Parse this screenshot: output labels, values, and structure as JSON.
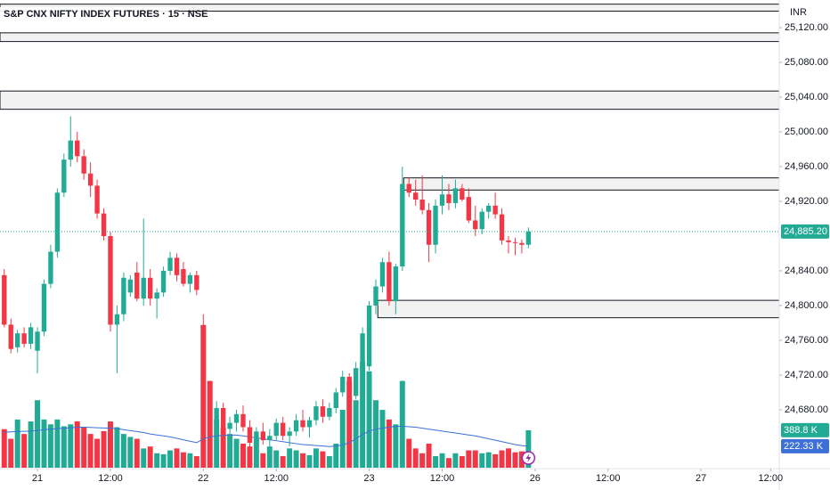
{
  "chart_data": {
    "type": "candlestick",
    "title": "S&P CNX NIFTY INDEX FUTURES · 15 · NSE",
    "currency": "INR",
    "color_up": "#22ab94",
    "color_down": "#f23645",
    "xlim": [
      -0.64,
      116.8
    ],
    "xticks": [
      {
        "value": 5,
        "label": "21"
      },
      {
        "value": 16,
        "label": "12:00"
      },
      {
        "value": 30,
        "label": "22"
      },
      {
        "value": 41,
        "label": "12:00"
      },
      {
        "value": 55,
        "label": "23"
      },
      {
        "value": 66,
        "label": "12:00"
      },
      {
        "value": 80,
        "label": "26"
      },
      {
        "value": 91,
        "label": "12:00"
      },
      {
        "value": 105,
        "label": "27"
      },
      {
        "value": 115.5,
        "label": "12:00"
      }
    ],
    "ylim": [
      24613.3,
      25151.8
    ],
    "yticks": [
      {
        "value": 25120,
        "label": "25,120.00"
      },
      {
        "value": 25080,
        "label": "25,080.00"
      },
      {
        "value": 25040,
        "label": "25,040.00"
      },
      {
        "value": 25000,
        "label": "25,000.00"
      },
      {
        "value": 24960,
        "label": "24,960.00"
      },
      {
        "value": 24920,
        "label": "24,920.00"
      },
      {
        "value": 24840,
        "label": "24,840.00"
      },
      {
        "value": 24800,
        "label": "24,800.00"
      },
      {
        "value": 24760,
        "label": "24,760.00"
      },
      {
        "value": 24720,
        "label": "24,720.00"
      },
      {
        "value": 24680,
        "label": "24,680.00"
      }
    ],
    "open": [
      24835,
      24778,
      24752,
      24768,
      24756,
      24748,
      24770,
      24825,
      24862,
      24930,
      24968,
      24990,
      24972,
      24952,
      24938,
      24906,
      24880,
      24778,
      24790,
      24815,
      24838,
      24808,
      24832,
      24808,
      24815,
      24840,
      24855,
      24842,
      24825,
      24835,
      24775,
      24688,
      24668,
      24682,
      24658,
      24665,
      24675,
      24660,
      24642,
      24655,
      24645,
      24650,
      24665,
      24650,
      24655,
      24668,
      24660,
      24668,
      24684,
      24672,
      24682,
      24700,
      24718,
      24696,
      24728,
      24730,
      24800,
      24822,
      24850,
      24805,
      24845,
      24940,
      24930,
      24922,
      24910,
      24870,
      24915,
      24928,
      24918,
      24935,
      24925,
      24898,
      24888,
      24908,
      24915,
      24905,
      24875,
      24873,
      24872,
      24870
    ],
    "high": [
      24842,
      24785,
      24772,
      24775,
      24780,
      24775,
      24830,
      24870,
      24935,
      24975,
      25018,
      25000,
      24980,
      24965,
      24945,
      24912,
      24885,
      24800,
      24838,
      24835,
      24850,
      24900,
      24842,
      24820,
      24845,
      24862,
      24860,
      24850,
      24838,
      24840,
      24790,
      24700,
      24690,
      24688,
      24672,
      24680,
      24685,
      24668,
      24660,
      24665,
      24658,
      24670,
      24672,
      24660,
      24675,
      24680,
      24672,
      24690,
      24692,
      24688,
      24705,
      24725,
      24722,
      24735,
      24775,
      24805,
      24830,
      24855,
      24862,
      24848,
      24960,
      24948,
      24945,
      24950,
      24918,
      24922,
      24950,
      24940,
      24945,
      24940,
      24935,
      24915,
      24912,
      24918,
      24930,
      24912,
      24880,
      24878,
      24876,
      24890
    ],
    "low": [
      24775,
      24745,
      24746,
      24752,
      24750,
      24722,
      24765,
      24820,
      24855,
      24925,
      24960,
      24965,
      24945,
      24925,
      24900,
      24875,
      24770,
      24722,
      24782,
      24810,
      24805,
      24800,
      24800,
      24785,
      24810,
      24835,
      24828,
      24822,
      24815,
      24812,
      24680,
      24660,
      24655,
      24650,
      24640,
      24655,
      24655,
      24635,
      24630,
      24640,
      24632,
      24645,
      24645,
      24638,
      24650,
      24655,
      24648,
      24662,
      24665,
      24668,
      24676,
      24695,
      24690,
      24692,
      24722,
      24725,
      24790,
      24815,
      24800,
      24790,
      24840,
      24925,
      24915,
      24905,
      24850,
      24860,
      24905,
      24910,
      24912,
      24920,
      24895,
      24880,
      24882,
      24900,
      24900,
      24870,
      24860,
      24858,
      24860,
      24866
    ],
    "close": [
      24778,
      24750,
      24768,
      24756,
      24775,
      24770,
      24825,
      24862,
      24930,
      24968,
      24990,
      24972,
      24952,
      24938,
      24906,
      24880,
      24778,
      24790,
      24832,
      24830,
      24808,
      24832,
      24808,
      24815,
      24840,
      24855,
      24835,
      24825,
      24835,
      24818,
      24688,
      24668,
      24682,
      24658,
      24665,
      24675,
      24660,
      24642,
      24655,
      24645,
      24650,
      24665,
      24650,
      24655,
      24668,
      24660,
      24668,
      24684,
      24672,
      24682,
      24700,
      24718,
      24696,
      24728,
      24768,
      24800,
      24822,
      24850,
      24805,
      24845,
      24940,
      24930,
      24922,
      24910,
      24870,
      24915,
      24928,
      24918,
      24935,
      24922,
      24898,
      24888,
      24908,
      24915,
      24905,
      24875,
      24873,
      24872,
      24870,
      24885.2
    ],
    "last_price": {
      "value": 24885.2,
      "label": "24,885.20"
    },
    "y2lim": [
      0,
      4850
    ],
    "volume": {
      "values": [
        400,
        300,
        500,
        350,
        480,
        700,
        500,
        450,
        500,
        430,
        450,
        480,
        420,
        350,
        300,
        380,
        480,
        420,
        350,
        320,
        300,
        200,
        220,
        150,
        140,
        180,
        200,
        160,
        150,
        120,
        1480,
        900,
        500,
        420,
        350,
        300,
        250,
        220,
        300,
        150,
        220,
        180,
        120,
        200,
        180,
        150,
        130,
        200,
        170,
        120,
        250,
        600,
        900,
        700,
        1100,
        1000,
        700,
        600,
        500,
        450,
        900,
        300,
        200,
        150,
        250,
        120,
        150,
        100,
        150,
        120,
        180,
        180,
        150,
        160,
        140,
        180,
        200,
        160,
        170,
        388.8
      ],
      "last_label": "388.8 K"
    },
    "volume_ma": {
      "color": "#3d6fd9",
      "values": [
        370,
        372,
        375,
        378,
        380,
        385,
        395,
        400,
        405,
        410,
        415,
        420,
        420,
        418,
        415,
        412,
        410,
        405,
        395,
        385,
        375,
        365,
        350,
        340,
        330,
        320,
        305,
        290,
        275,
        260,
        300,
        320,
        330,
        335,
        340,
        338,
        330,
        320,
        310,
        300,
        290,
        280,
        270,
        260,
        250,
        240,
        235,
        230,
        225,
        220,
        225,
        235,
        260,
        300,
        345,
        380,
        400,
        410,
        420,
        430,
        430,
        425,
        420,
        410,
        400,
        390,
        380,
        370,
        360,
        350,
        340,
        330,
        315,
        300,
        285,
        270,
        255,
        240,
        230,
        222.33
      ],
      "last_label": "222.33 K"
    },
    "zones": [
      {
        "low": 25139,
        "high": 25147,
        "start": -0.64
      },
      {
        "low": 25104,
        "high": 25114,
        "start": -0.64
      },
      {
        "low": 25026,
        "high": 25047,
        "start": -0.64
      },
      {
        "low": 24933,
        "high": 24947,
        "start": 60.2
      },
      {
        "low": 24786,
        "high": 24806,
        "start": 56.3
      }
    ]
  }
}
